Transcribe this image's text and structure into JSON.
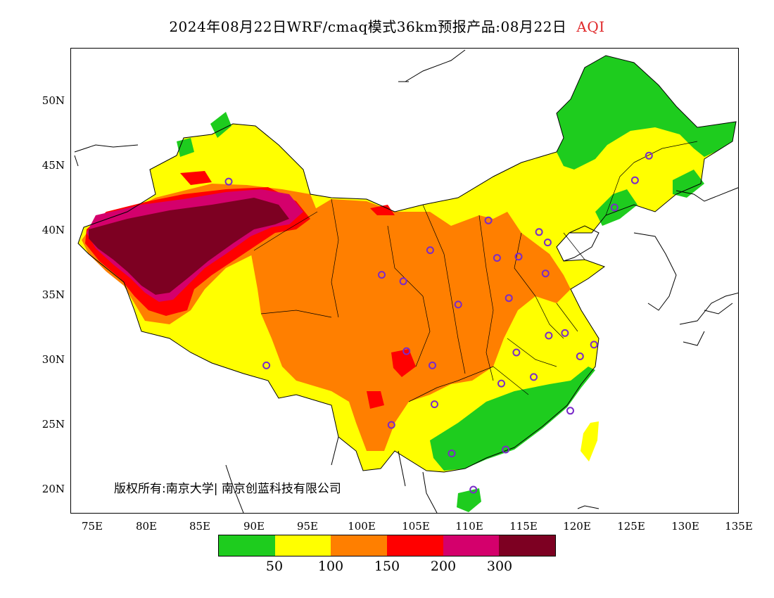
{
  "title": {
    "main": "2024年08月22日WRF/cmaq模式36km预报产品:08月22日",
    "variable": "AQI"
  },
  "axes": {
    "lat_ticks": [
      "50N",
      "45N",
      "40N",
      "35N",
      "30N",
      "25N",
      "20N"
    ],
    "lon_ticks": [
      "75E",
      "80E",
      "85E",
      "90E",
      "95E",
      "100E",
      "105E",
      "110E",
      "115E",
      "120E",
      "125E",
      "130E",
      "135E"
    ]
  },
  "copyright": "版权所有:南京大学| 南京创蓝科技有限公司",
  "legend": {
    "colors": [
      "#1ecc1e",
      "#ffff00",
      "#ff7f00",
      "#ff0000",
      "#d4006c",
      "#7d0022"
    ],
    "ticks": [
      "50",
      "100",
      "150",
      "200",
      "300"
    ]
  },
  "chart_data": {
    "type": "heatmap",
    "title": "2024年08月22日WRF/cmaq模式36km预报产品:08月22日 AQI",
    "x_range": [
      73,
      135
    ],
    "y_range": [
      18,
      54
    ],
    "x_ticks": [
      75,
      80,
      85,
      90,
      95,
      100,
      105,
      110,
      115,
      120,
      125,
      130,
      135
    ],
    "y_ticks": [
      20,
      25,
      30,
      35,
      40,
      45,
      50
    ],
    "color_breaks": [
      50,
      100,
      150,
      200,
      300
    ],
    "stations": [
      [
        87.6,
        43.8
      ],
      [
        91.1,
        29.6
      ],
      [
        101.8,
        36.6
      ],
      [
        103.8,
        36.1
      ],
      [
        106.3,
        38.5
      ],
      [
        104.1,
        30.7
      ],
      [
        106.5,
        29.6
      ],
      [
        106.7,
        26.6
      ],
      [
        102.7,
        25.0
      ],
      [
        108.9,
        34.3
      ],
      [
        111.7,
        40.8
      ],
      [
        112.5,
        37.9
      ],
      [
        113.6,
        34.8
      ],
      [
        114.5,
        38.0
      ],
      [
        116.4,
        39.9
      ],
      [
        117.2,
        39.1
      ],
      [
        117.0,
        36.7
      ],
      [
        117.3,
        31.9
      ],
      [
        118.8,
        32.1
      ],
      [
        121.5,
        31.2
      ],
      [
        120.2,
        30.3
      ],
      [
        114.3,
        30.6
      ],
      [
        112.9,
        28.2
      ],
      [
        115.9,
        28.7
      ],
      [
        119.3,
        26.1
      ],
      [
        113.3,
        23.1
      ],
      [
        108.3,
        22.8
      ],
      [
        110.3,
        20.0
      ],
      [
        123.4,
        41.8
      ],
      [
        125.3,
        43.9
      ],
      [
        126.6,
        45.8
      ]
    ]
  }
}
